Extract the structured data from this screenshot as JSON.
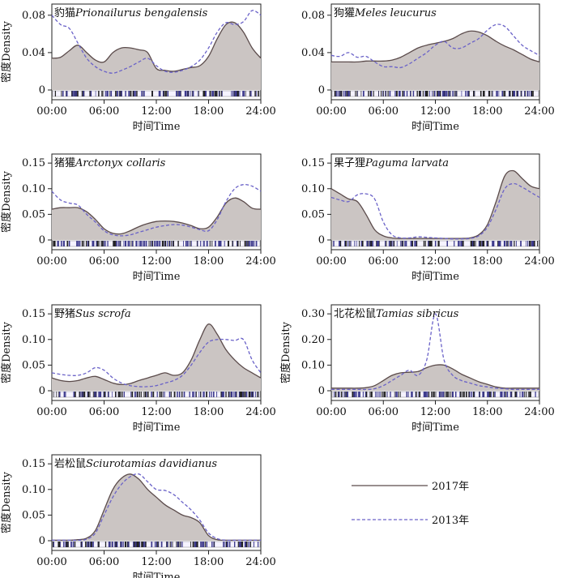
{
  "chart_data": [
    {
      "type": "area",
      "species_cn": "豹猫",
      "species_latin": "Prionailurus bengalensis",
      "ylabel": "密度Density",
      "xlabel": "时间Time",
      "x_ticks": [
        "00:00",
        "06:00",
        "12:00",
        "18:00",
        "24:00"
      ],
      "y_ticks": [
        "0",
        "0.04",
        "0.08"
      ],
      "ylim": [
        0,
        0.085
      ],
      "series": [
        {
          "name": "2017年",
          "x": [
            0,
            1,
            2,
            3,
            4,
            5,
            6,
            7,
            8,
            9,
            10,
            11,
            12,
            13,
            14,
            15,
            16,
            17,
            18,
            19,
            20,
            21,
            22,
            23,
            24
          ],
          "values": [
            0.034,
            0.035,
            0.042,
            0.048,
            0.04,
            0.032,
            0.03,
            0.04,
            0.045,
            0.045,
            0.043,
            0.04,
            0.023,
            0.021,
            0.02,
            0.022,
            0.024,
            0.026,
            0.036,
            0.055,
            0.07,
            0.072,
            0.062,
            0.045,
            0.034
          ]
        },
        {
          "name": "2013年",
          "x": [
            0,
            1,
            2,
            3,
            4,
            5,
            6,
            7,
            8,
            9,
            10,
            11,
            12,
            13,
            14,
            15,
            16,
            17,
            18,
            19,
            20,
            21,
            22,
            23,
            24
          ],
          "values": [
            0.08,
            0.07,
            0.066,
            0.05,
            0.034,
            0.025,
            0.02,
            0.018,
            0.021,
            0.025,
            0.03,
            0.034,
            0.026,
            0.02,
            0.019,
            0.021,
            0.025,
            0.032,
            0.045,
            0.062,
            0.072,
            0.07,
            0.073,
            0.085,
            0.08
          ]
        }
      ]
    },
    {
      "type": "area",
      "species_cn": "狗獾",
      "species_latin": "Meles leucurus",
      "ylabel": "",
      "xlabel": "时间Time",
      "x_ticks": [
        "00:00",
        "06:00",
        "12:00",
        "18:00",
        "24:00"
      ],
      "y_ticks": [
        "0",
        "0.04",
        "0.08"
      ],
      "ylim": [
        0,
        0.085
      ],
      "series": [
        {
          "name": "2017年",
          "x": [
            0,
            1,
            2,
            3,
            4,
            5,
            6,
            7,
            8,
            9,
            10,
            11,
            12,
            13,
            14,
            15,
            16,
            17,
            18,
            19,
            20,
            21,
            22,
            23,
            24
          ],
          "values": [
            0.03,
            0.03,
            0.03,
            0.03,
            0.031,
            0.031,
            0.031,
            0.032,
            0.035,
            0.04,
            0.045,
            0.048,
            0.05,
            0.052,
            0.055,
            0.06,
            0.063,
            0.062,
            0.058,
            0.052,
            0.047,
            0.043,
            0.038,
            0.033,
            0.03
          ]
        },
        {
          "name": "2013年",
          "x": [
            0,
            1,
            2,
            3,
            4,
            5,
            6,
            7,
            8,
            9,
            10,
            11,
            12,
            13,
            14,
            15,
            16,
            17,
            18,
            19,
            20,
            21,
            22,
            23,
            24
          ],
          "values": [
            0.037,
            0.036,
            0.04,
            0.035,
            0.036,
            0.03,
            0.025,
            0.025,
            0.024,
            0.028,
            0.034,
            0.04,
            0.048,
            0.052,
            0.045,
            0.045,
            0.05,
            0.055,
            0.064,
            0.07,
            0.068,
            0.058,
            0.048,
            0.042,
            0.037
          ]
        }
      ]
    },
    {
      "type": "area",
      "species_cn": "猪獾",
      "species_latin": "Arctonyx collaris",
      "ylabel": "密度Density",
      "xlabel": "时间Time",
      "x_ticks": [
        "00:00",
        "06:00",
        "12:00",
        "18:00",
        "24:00"
      ],
      "y_ticks": [
        "0",
        "0.05",
        "0.10",
        "0.15"
      ],
      "ylim": [
        0,
        0.155
      ],
      "series": [
        {
          "name": "2017年",
          "x": [
            0,
            1,
            2,
            3,
            4,
            5,
            6,
            7,
            8,
            9,
            10,
            11,
            12,
            13,
            14,
            15,
            16,
            17,
            18,
            19,
            20,
            21,
            22,
            23,
            24
          ],
          "values": [
            0.06,
            0.063,
            0.063,
            0.063,
            0.055,
            0.04,
            0.022,
            0.013,
            0.012,
            0.018,
            0.026,
            0.032,
            0.036,
            0.037,
            0.036,
            0.033,
            0.028,
            0.022,
            0.025,
            0.045,
            0.072,
            0.082,
            0.075,
            0.062,
            0.06
          ]
        },
        {
          "name": "2013年",
          "x": [
            0,
            1,
            2,
            3,
            4,
            5,
            6,
            7,
            8,
            9,
            10,
            11,
            12,
            13,
            14,
            15,
            16,
            17,
            18,
            19,
            20,
            21,
            22,
            23,
            24
          ],
          "values": [
            0.095,
            0.078,
            0.072,
            0.068,
            0.05,
            0.035,
            0.018,
            0.01,
            0.008,
            0.01,
            0.015,
            0.02,
            0.025,
            0.028,
            0.03,
            0.029,
            0.025,
            0.02,
            0.018,
            0.04,
            0.075,
            0.1,
            0.108,
            0.105,
            0.095
          ]
        }
      ]
    },
    {
      "type": "area",
      "species_cn": "果子狸",
      "species_latin": "Paguma larvata",
      "ylabel": "",
      "xlabel": "时间Time",
      "x_ticks": [
        "00:00",
        "06:00",
        "12:00",
        "18:00",
        "24:00"
      ],
      "y_ticks": [
        "0",
        "0.05",
        "0.10",
        "0.15"
      ],
      "ylim": [
        0,
        0.155
      ],
      "series": [
        {
          "name": "2017年",
          "x": [
            0,
            1,
            2,
            3,
            4,
            5,
            6,
            7,
            8,
            9,
            10,
            11,
            12,
            13,
            14,
            15,
            16,
            17,
            18,
            19,
            20,
            21,
            22,
            23,
            24
          ],
          "values": [
            0.1,
            0.09,
            0.08,
            0.075,
            0.05,
            0.02,
            0.008,
            0.004,
            0.003,
            0.003,
            0.003,
            0.003,
            0.003,
            0.003,
            0.003,
            0.003,
            0.004,
            0.01,
            0.03,
            0.075,
            0.125,
            0.135,
            0.12,
            0.105,
            0.1
          ]
        },
        {
          "name": "2013年",
          "x": [
            0,
            1,
            2,
            3,
            4,
            5,
            6,
            7,
            8,
            9,
            10,
            11,
            12,
            13,
            14,
            15,
            16,
            17,
            18,
            19,
            20,
            21,
            22,
            23,
            24
          ],
          "values": [
            0.083,
            0.078,
            0.075,
            0.088,
            0.09,
            0.08,
            0.035,
            0.01,
            0.004,
            0.004,
            0.006,
            0.005,
            0.004,
            0.003,
            0.002,
            0.002,
            0.003,
            0.008,
            0.025,
            0.06,
            0.1,
            0.11,
            0.103,
            0.093,
            0.083
          ]
        }
      ]
    },
    {
      "type": "area",
      "species_cn": "野猪",
      "species_latin": "Sus scrofa",
      "ylabel": "密度Density",
      "xlabel": "时间Time",
      "x_ticks": [
        "00:00",
        "06:00",
        "12:00",
        "18:00",
        "24:00"
      ],
      "y_ticks": [
        "0",
        "0.05",
        "0.10",
        "0.15"
      ],
      "ylim": [
        0,
        0.155
      ],
      "series": [
        {
          "name": "2017年",
          "x": [
            0,
            1,
            2,
            3,
            4,
            5,
            6,
            7,
            8,
            9,
            10,
            11,
            12,
            13,
            14,
            15,
            16,
            17,
            18,
            19,
            20,
            21,
            22,
            23,
            24
          ],
          "values": [
            0.025,
            0.02,
            0.018,
            0.02,
            0.025,
            0.028,
            0.022,
            0.015,
            0.012,
            0.014,
            0.02,
            0.025,
            0.03,
            0.035,
            0.03,
            0.035,
            0.06,
            0.1,
            0.13,
            0.11,
            0.08,
            0.06,
            0.045,
            0.035,
            0.025
          ]
        },
        {
          "name": "2013年",
          "x": [
            0,
            1,
            2,
            3,
            4,
            5,
            6,
            7,
            8,
            9,
            10,
            11,
            12,
            13,
            14,
            15,
            16,
            17,
            18,
            19,
            20,
            21,
            22,
            23,
            24
          ],
          "values": [
            0.035,
            0.032,
            0.03,
            0.03,
            0.035,
            0.045,
            0.04,
            0.025,
            0.015,
            0.01,
            0.008,
            0.008,
            0.01,
            0.015,
            0.02,
            0.03,
            0.05,
            0.075,
            0.095,
            0.1,
            0.1,
            0.098,
            0.1,
            0.06,
            0.035
          ]
        }
      ]
    },
    {
      "type": "area",
      "species_cn": "北花松鼠",
      "species_latin": "Tamias sibricus",
      "ylabel": "密度Density",
      "xlabel": "时间Time",
      "x_ticks": [
        "00:00",
        "06:00",
        "12:00",
        "18:00",
        "24:00"
      ],
      "y_ticks": [
        "0",
        "0.10",
        "0.20",
        "0.30"
      ],
      "ylim": [
        0,
        0.31
      ],
      "series": [
        {
          "name": "2017年",
          "x": [
            0,
            1,
            2,
            3,
            4,
            5,
            6,
            7,
            8,
            9,
            10,
            11,
            12,
            13,
            14,
            15,
            16,
            17,
            18,
            19,
            20,
            21,
            22,
            23,
            24
          ],
          "values": [
            0.01,
            0.01,
            0.01,
            0.01,
            0.012,
            0.02,
            0.04,
            0.06,
            0.07,
            0.072,
            0.075,
            0.09,
            0.1,
            0.1,
            0.085,
            0.065,
            0.05,
            0.035,
            0.025,
            0.015,
            0.01,
            0.01,
            0.01,
            0.01,
            0.01
          ]
        },
        {
          "name": "2013年",
          "x": [
            0,
            1,
            2,
            3,
            4,
            5,
            6,
            7,
            8,
            9,
            10,
            11,
            12,
            13,
            14,
            15,
            16,
            17,
            18,
            19,
            20,
            21,
            22,
            23,
            24
          ],
          "values": [
            0.005,
            0.005,
            0.005,
            0.005,
            0.005,
            0.008,
            0.02,
            0.04,
            0.06,
            0.08,
            0.06,
            0.12,
            0.3,
            0.12,
            0.06,
            0.04,
            0.03,
            0.02,
            0.015,
            0.01,
            0.008,
            0.005,
            0.005,
            0.005,
            0.005
          ]
        }
      ]
    },
    {
      "type": "area",
      "species_cn": "岩松鼠",
      "species_latin": "Sciurotamias davidianus",
      "ylabel": "密度Density",
      "xlabel": "时间Time",
      "x_ticks": [
        "00:00",
        "06:00",
        "12:00",
        "18:00",
        "24:00"
      ],
      "y_ticks": [
        "0",
        "0.05",
        "0.10",
        "0.15"
      ],
      "ylim": [
        0,
        0.155
      ],
      "series": [
        {
          "name": "2017年",
          "x": [
            0,
            1,
            2,
            3,
            4,
            5,
            6,
            7,
            8,
            9,
            10,
            11,
            12,
            13,
            14,
            15,
            16,
            17,
            18,
            19,
            20,
            21,
            22,
            23,
            24
          ],
          "values": [
            0.001,
            0.001,
            0.001,
            0.002,
            0.005,
            0.02,
            0.06,
            0.1,
            0.122,
            0.13,
            0.12,
            0.1,
            0.085,
            0.07,
            0.06,
            0.05,
            0.045,
            0.035,
            0.01,
            0.002,
            0.001,
            0.001,
            0.001,
            0.001,
            0.001
          ]
        },
        {
          "name": "2013年",
          "x": [
            0,
            1,
            2,
            3,
            4,
            5,
            6,
            7,
            8,
            9,
            10,
            11,
            12,
            13,
            14,
            15,
            16,
            17,
            18,
            19,
            20,
            21,
            22,
            23,
            24
          ],
          "values": [
            0.001,
            0.001,
            0.001,
            0.001,
            0.003,
            0.015,
            0.05,
            0.085,
            0.11,
            0.125,
            0.13,
            0.115,
            0.1,
            0.098,
            0.09,
            0.075,
            0.06,
            0.04,
            0.015,
            0.004,
            0.001,
            0.001,
            0.001,
            0.001,
            0.001
          ]
        }
      ]
    }
  ],
  "legend": {
    "items": [
      {
        "label": "2017年",
        "style": "solid",
        "color": "#5b4b4b"
      },
      {
        "label": "2013年",
        "style": "dashed",
        "color": "#6a62c8"
      }
    ]
  },
  "colors": {
    "area_2017": "#cbc5c3",
    "line_2017": "#5b4b4b",
    "line_2013": "#6a62c8"
  }
}
